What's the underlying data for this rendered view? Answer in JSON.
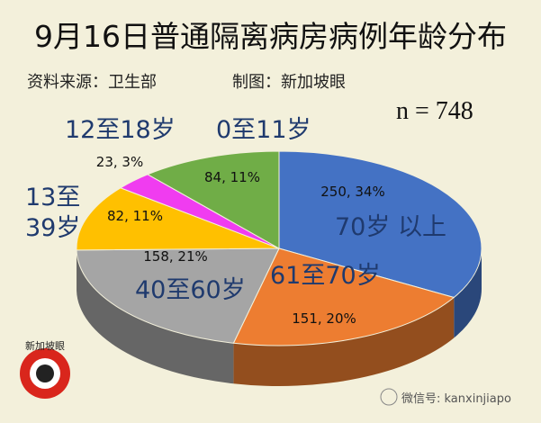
{
  "chart_data": {
    "type": "pie",
    "title": "9月16日普通隔离病房病例年龄分布",
    "source": "资料来源：卫生部",
    "credit": "制图：新加坡眼",
    "annotation": "n = 748",
    "logo": "新加坡眼",
    "watermark": "微信号: kanxinjiapo",
    "categories": [
      "70岁 以上",
      "61至70岁",
      "40至60岁",
      "13至39岁",
      "12至18岁",
      "0至11岁"
    ],
    "values": [
      250,
      151,
      158,
      82,
      23,
      84
    ],
    "value_labels": [
      "250, 34%",
      "151, 20%",
      "158, 21%",
      "82, 11%",
      "23, 3%",
      "84, 11%"
    ],
    "colors": [
      "#4472c4",
      "#ed7d31",
      "#a5a5a5",
      "#ffc000",
      "#f03cf0",
      "#70ad47"
    ]
  }
}
